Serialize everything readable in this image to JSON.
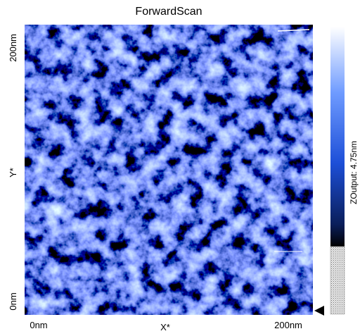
{
  "title": "ForwardScan",
  "y_axis": {
    "label": "Y*",
    "top": "200nm",
    "bottom": "0nm"
  },
  "x_axis": {
    "label": "X*",
    "left": "0nm",
    "right": "200nm"
  },
  "colorbar": {
    "label": "ZOutput: 4.75nm"
  }
}
